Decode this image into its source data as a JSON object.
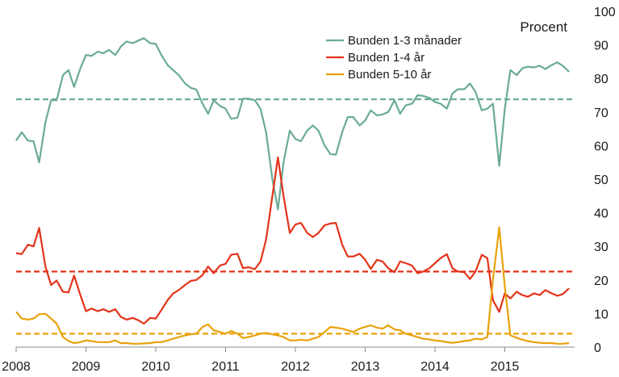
{
  "chart_data": {
    "type": "line",
    "unit_label": "Procent",
    "xlim": [
      2008.0,
      2016.0
    ],
    "ylim": [
      0,
      100
    ],
    "x_ticks": [
      "2008",
      "2009",
      "2010",
      "2011",
      "2012",
      "2013",
      "2014",
      "2015"
    ],
    "y_ticks": [
      "0",
      "10",
      "20",
      "30",
      "40",
      "50",
      "60",
      "70",
      "80",
      "90",
      "100"
    ],
    "grid": false,
    "legend_position": "top-right",
    "series": [
      {
        "name": "Bunden 1-3 månader",
        "color": "#6aab96",
        "average": 73.8,
        "points": [
          [
            2008.0,
            61.5
          ],
          [
            2008.08,
            64.0
          ],
          [
            2008.17,
            61.5
          ],
          [
            2008.25,
            61.3
          ],
          [
            2008.33,
            55.0
          ],
          [
            2008.42,
            67.0
          ],
          [
            2008.5,
            73.5
          ],
          [
            2008.58,
            73.5
          ],
          [
            2008.67,
            81.0
          ],
          [
            2008.75,
            82.5
          ],
          [
            2008.83,
            77.5
          ],
          [
            2008.92,
            83.0
          ],
          [
            2009.0,
            87.0
          ],
          [
            2009.08,
            86.7
          ],
          [
            2009.17,
            88.0
          ],
          [
            2009.25,
            87.5
          ],
          [
            2009.33,
            88.5
          ],
          [
            2009.42,
            87.0
          ],
          [
            2009.5,
            89.5
          ],
          [
            2009.58,
            91.0
          ],
          [
            2009.67,
            90.5
          ],
          [
            2009.75,
            91.3
          ],
          [
            2009.83,
            92.0
          ],
          [
            2009.92,
            90.5
          ],
          [
            2010.0,
            90.3
          ],
          [
            2010.08,
            87.0
          ],
          [
            2010.17,
            84.0
          ],
          [
            2010.25,
            82.5
          ],
          [
            2010.33,
            81.0
          ],
          [
            2010.42,
            78.5
          ],
          [
            2010.5,
            77.2
          ],
          [
            2010.58,
            76.7
          ],
          [
            2010.67,
            72.5
          ],
          [
            2010.75,
            69.5
          ],
          [
            2010.83,
            73.5
          ],
          [
            2010.92,
            71.8
          ],
          [
            2011.0,
            71.0
          ],
          [
            2011.08,
            68.0
          ],
          [
            2011.17,
            68.3
          ],
          [
            2011.25,
            74.0
          ],
          [
            2011.33,
            74.0
          ],
          [
            2011.42,
            73.5
          ],
          [
            2011.5,
            71.0
          ],
          [
            2011.58,
            64.0
          ],
          [
            2011.67,
            50.0
          ],
          [
            2011.75,
            41.0
          ],
          [
            2011.83,
            55.0
          ],
          [
            2011.92,
            64.5
          ],
          [
            2012.0,
            62.0
          ],
          [
            2012.08,
            61.3
          ],
          [
            2012.17,
            64.5
          ],
          [
            2012.25,
            66.0
          ],
          [
            2012.33,
            64.5
          ],
          [
            2012.42,
            60.0
          ],
          [
            2012.5,
            57.5
          ],
          [
            2012.58,
            57.3
          ],
          [
            2012.67,
            64.0
          ],
          [
            2012.75,
            68.5
          ],
          [
            2012.83,
            68.5
          ],
          [
            2012.92,
            66.0
          ],
          [
            2013.0,
            67.5
          ],
          [
            2013.08,
            70.5
          ],
          [
            2013.17,
            69.0
          ],
          [
            2013.25,
            69.3
          ],
          [
            2013.33,
            70.0
          ],
          [
            2013.42,
            73.5
          ],
          [
            2013.5,
            69.5
          ],
          [
            2013.58,
            72.0
          ],
          [
            2013.67,
            72.5
          ],
          [
            2013.75,
            75.0
          ],
          [
            2013.83,
            74.8
          ],
          [
            2013.92,
            74.2
          ],
          [
            2014.0,
            73.0
          ],
          [
            2014.08,
            72.5
          ],
          [
            2014.17,
            71.0
          ],
          [
            2014.25,
            75.5
          ],
          [
            2014.33,
            76.8
          ],
          [
            2014.42,
            76.8
          ],
          [
            2014.5,
            78.5
          ],
          [
            2014.58,
            76.0
          ],
          [
            2014.67,
            70.5
          ],
          [
            2014.75,
            71.0
          ],
          [
            2014.83,
            72.5
          ],
          [
            2014.92,
            54.0
          ],
          [
            2015.0,
            71.0
          ],
          [
            2015.08,
            82.5
          ],
          [
            2015.17,
            81.0
          ],
          [
            2015.25,
            83.0
          ],
          [
            2015.33,
            83.5
          ],
          [
            2015.42,
            83.3
          ],
          [
            2015.5,
            83.8
          ],
          [
            2015.58,
            82.8
          ],
          [
            2015.67,
            84.0
          ],
          [
            2015.75,
            84.8
          ],
          [
            2015.83,
            83.8
          ],
          [
            2015.92,
            82.0
          ]
        ]
      },
      {
        "name": "Bunden 1-4 år",
        "color": "#e3331a",
        "average": 22.5,
        "points": [
          [
            2008.0,
            28.0
          ],
          [
            2008.08,
            27.7
          ],
          [
            2008.17,
            30.5
          ],
          [
            2008.25,
            30.0
          ],
          [
            2008.33,
            35.5
          ],
          [
            2008.42,
            24.0
          ],
          [
            2008.5,
            18.5
          ],
          [
            2008.58,
            19.8
          ],
          [
            2008.67,
            16.5
          ],
          [
            2008.75,
            16.3
          ],
          [
            2008.83,
            21.3
          ],
          [
            2008.92,
            15.5
          ],
          [
            2009.0,
            10.7
          ],
          [
            2009.08,
            11.5
          ],
          [
            2009.17,
            10.7
          ],
          [
            2009.25,
            11.3
          ],
          [
            2009.33,
            10.5
          ],
          [
            2009.42,
            11.3
          ],
          [
            2009.5,
            9.0
          ],
          [
            2009.58,
            8.2
          ],
          [
            2009.67,
            8.7
          ],
          [
            2009.75,
            8.0
          ],
          [
            2009.83,
            7.0
          ],
          [
            2009.92,
            8.7
          ],
          [
            2010.0,
            8.5
          ],
          [
            2010.08,
            11.0
          ],
          [
            2010.17,
            14.0
          ],
          [
            2010.25,
            16.0
          ],
          [
            2010.33,
            17.0
          ],
          [
            2010.42,
            18.5
          ],
          [
            2010.5,
            19.7
          ],
          [
            2010.58,
            20.0
          ],
          [
            2010.67,
            21.5
          ],
          [
            2010.75,
            24.0
          ],
          [
            2010.83,
            22.0
          ],
          [
            2010.92,
            24.3
          ],
          [
            2011.0,
            24.8
          ],
          [
            2011.08,
            27.5
          ],
          [
            2011.17,
            27.8
          ],
          [
            2011.25,
            23.5
          ],
          [
            2011.33,
            23.8
          ],
          [
            2011.42,
            23.2
          ],
          [
            2011.5,
            25.5
          ],
          [
            2011.58,
            32.0
          ],
          [
            2011.67,
            45.0
          ],
          [
            2011.75,
            56.5
          ],
          [
            2011.83,
            45.0
          ],
          [
            2011.92,
            34.0
          ],
          [
            2012.0,
            36.5
          ],
          [
            2012.08,
            37.0
          ],
          [
            2012.17,
            34.0
          ],
          [
            2012.25,
            32.8
          ],
          [
            2012.33,
            34.0
          ],
          [
            2012.42,
            36.3
          ],
          [
            2012.5,
            36.8
          ],
          [
            2012.58,
            37.0
          ],
          [
            2012.67,
            30.5
          ],
          [
            2012.75,
            27.0
          ],
          [
            2012.83,
            27.0
          ],
          [
            2012.92,
            27.8
          ],
          [
            2013.0,
            26.0
          ],
          [
            2013.08,
            23.3
          ],
          [
            2013.17,
            26.0
          ],
          [
            2013.25,
            25.5
          ],
          [
            2013.33,
            23.5
          ],
          [
            2013.42,
            22.3
          ],
          [
            2013.5,
            25.5
          ],
          [
            2013.58,
            25.0
          ],
          [
            2013.67,
            24.3
          ],
          [
            2013.75,
            22.0
          ],
          [
            2013.83,
            22.5
          ],
          [
            2013.92,
            23.5
          ],
          [
            2014.0,
            25.0
          ],
          [
            2014.08,
            26.5
          ],
          [
            2014.17,
            27.7
          ],
          [
            2014.25,
            23.5
          ],
          [
            2014.33,
            22.5
          ],
          [
            2014.42,
            22.3
          ],
          [
            2014.5,
            20.3
          ],
          [
            2014.58,
            22.5
          ],
          [
            2014.67,
            27.5
          ],
          [
            2014.75,
            26.5
          ],
          [
            2014.83,
            14.0
          ],
          [
            2014.92,
            10.5
          ],
          [
            2015.0,
            16.0
          ],
          [
            2015.08,
            14.5
          ],
          [
            2015.17,
            16.5
          ],
          [
            2015.25,
            15.5
          ],
          [
            2015.33,
            15.0
          ],
          [
            2015.42,
            16.0
          ],
          [
            2015.5,
            15.5
          ],
          [
            2015.58,
            17.0
          ],
          [
            2015.67,
            16.0
          ],
          [
            2015.75,
            15.3
          ],
          [
            2015.83,
            15.8
          ],
          [
            2015.92,
            17.5
          ]
        ]
      },
      {
        "name": "Bunden 5-10 år",
        "color": "#e8a20c",
        "average": 4.0,
        "points": [
          [
            2008.0,
            10.5
          ],
          [
            2008.08,
            8.5
          ],
          [
            2008.17,
            8.2
          ],
          [
            2008.25,
            8.5
          ],
          [
            2008.33,
            9.8
          ],
          [
            2008.42,
            9.9
          ],
          [
            2008.5,
            8.5
          ],
          [
            2008.58,
            7.0
          ],
          [
            2008.67,
            3.0
          ],
          [
            2008.75,
            1.8
          ],
          [
            2008.83,
            1.2
          ],
          [
            2008.92,
            1.5
          ],
          [
            2009.0,
            2.0
          ],
          [
            2009.08,
            1.8
          ],
          [
            2009.17,
            1.5
          ],
          [
            2009.25,
            1.5
          ],
          [
            2009.33,
            1.5
          ],
          [
            2009.42,
            2.0
          ],
          [
            2009.5,
            1.2
          ],
          [
            2009.58,
            1.2
          ],
          [
            2009.67,
            1.0
          ],
          [
            2009.75,
            1.0
          ],
          [
            2009.83,
            1.1
          ],
          [
            2009.92,
            1.2
          ],
          [
            2010.0,
            1.5
          ],
          [
            2010.08,
            1.5
          ],
          [
            2010.17,
            2.0
          ],
          [
            2010.25,
            2.5
          ],
          [
            2010.33,
            3.0
          ],
          [
            2010.42,
            3.5
          ],
          [
            2010.5,
            3.8
          ],
          [
            2010.58,
            4.0
          ],
          [
            2010.67,
            6.0
          ],
          [
            2010.75,
            6.8
          ],
          [
            2010.83,
            5.0
          ],
          [
            2010.92,
            4.5
          ],
          [
            2011.0,
            4.0
          ],
          [
            2011.08,
            4.8
          ],
          [
            2011.17,
            4.0
          ],
          [
            2011.25,
            2.7
          ],
          [
            2011.33,
            3.0
          ],
          [
            2011.42,
            3.5
          ],
          [
            2011.5,
            4.0
          ],
          [
            2011.58,
            4.2
          ],
          [
            2011.67,
            3.8
          ],
          [
            2011.75,
            3.5
          ],
          [
            2011.83,
            3.0
          ],
          [
            2011.92,
            2.0
          ],
          [
            2012.0,
            2.0
          ],
          [
            2012.08,
            2.2
          ],
          [
            2012.17,
            2.0
          ],
          [
            2012.25,
            2.5
          ],
          [
            2012.33,
            3.0
          ],
          [
            2012.42,
            4.5
          ],
          [
            2012.5,
            6.0
          ],
          [
            2012.58,
            5.8
          ],
          [
            2012.67,
            5.5
          ],
          [
            2012.75,
            5.0
          ],
          [
            2012.83,
            4.5
          ],
          [
            2012.92,
            5.5
          ],
          [
            2013.0,
            6.0
          ],
          [
            2013.08,
            6.5
          ],
          [
            2013.17,
            5.8
          ],
          [
            2013.25,
            5.5
          ],
          [
            2013.33,
            6.5
          ],
          [
            2013.42,
            5.3
          ],
          [
            2013.5,
            5.0
          ],
          [
            2013.58,
            4.0
          ],
          [
            2013.67,
            3.5
          ],
          [
            2013.75,
            3.0
          ],
          [
            2013.83,
            2.5
          ],
          [
            2013.92,
            2.3
          ],
          [
            2014.0,
            2.0
          ],
          [
            2014.08,
            1.8
          ],
          [
            2014.17,
            1.5
          ],
          [
            2014.25,
            1.3
          ],
          [
            2014.33,
            1.5
          ],
          [
            2014.42,
            1.8
          ],
          [
            2014.5,
            2.0
          ],
          [
            2014.58,
            2.5
          ],
          [
            2014.67,
            2.3
          ],
          [
            2014.75,
            3.0
          ],
          [
            2014.83,
            20.0
          ],
          [
            2014.92,
            35.7
          ],
          [
            2015.0,
            18.0
          ],
          [
            2015.08,
            3.5
          ],
          [
            2015.17,
            2.8
          ],
          [
            2015.25,
            2.2
          ],
          [
            2015.33,
            1.8
          ],
          [
            2015.42,
            1.5
          ],
          [
            2015.5,
            1.3
          ],
          [
            2015.58,
            1.2
          ],
          [
            2015.67,
            1.2
          ],
          [
            2015.75,
            1.0
          ],
          [
            2015.83,
            1.0
          ],
          [
            2015.92,
            1.2
          ]
        ]
      }
    ]
  }
}
